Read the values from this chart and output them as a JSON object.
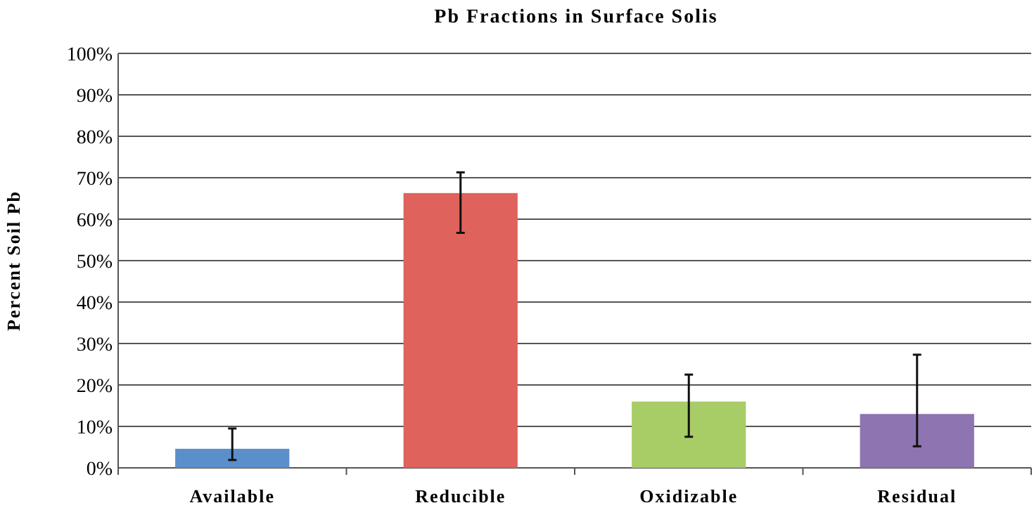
{
  "chart_data": {
    "type": "bar",
    "title": "Pb Fractions in Surface Solis",
    "ylabel": "Percent Soil Pb",
    "categories": [
      "Available",
      "Reducible",
      "Oxidizable",
      "Residual"
    ],
    "values": [
      4.6,
      66.3,
      16.0,
      13.0
    ],
    "colors": [
      "#5b8fcc",
      "#e0625c",
      "#a8cc66",
      "#8e74b0"
    ],
    "errors": [
      [
        1.9,
        9.5
      ],
      [
        56.7,
        71.3
      ],
      [
        7.5,
        22.5
      ],
      [
        5.2,
        27.3
      ]
    ],
    "ylim": [
      0,
      100
    ],
    "yticks": [
      {
        "value": 0,
        "label": "0%"
      },
      {
        "value": 10,
        "label": "10%"
      },
      {
        "value": 20,
        "label": "20%"
      },
      {
        "value": 30,
        "label": "30%"
      },
      {
        "value": 40,
        "label": "40%"
      },
      {
        "value": 50,
        "label": "50%"
      },
      {
        "value": 60,
        "label": "60%"
      },
      {
        "value": 70,
        "label": "70%"
      },
      {
        "value": 80,
        "label": "80%"
      },
      {
        "value": 90,
        "label": "90%"
      },
      {
        "value": 100,
        "label": "100%"
      }
    ],
    "grid": "y"
  }
}
